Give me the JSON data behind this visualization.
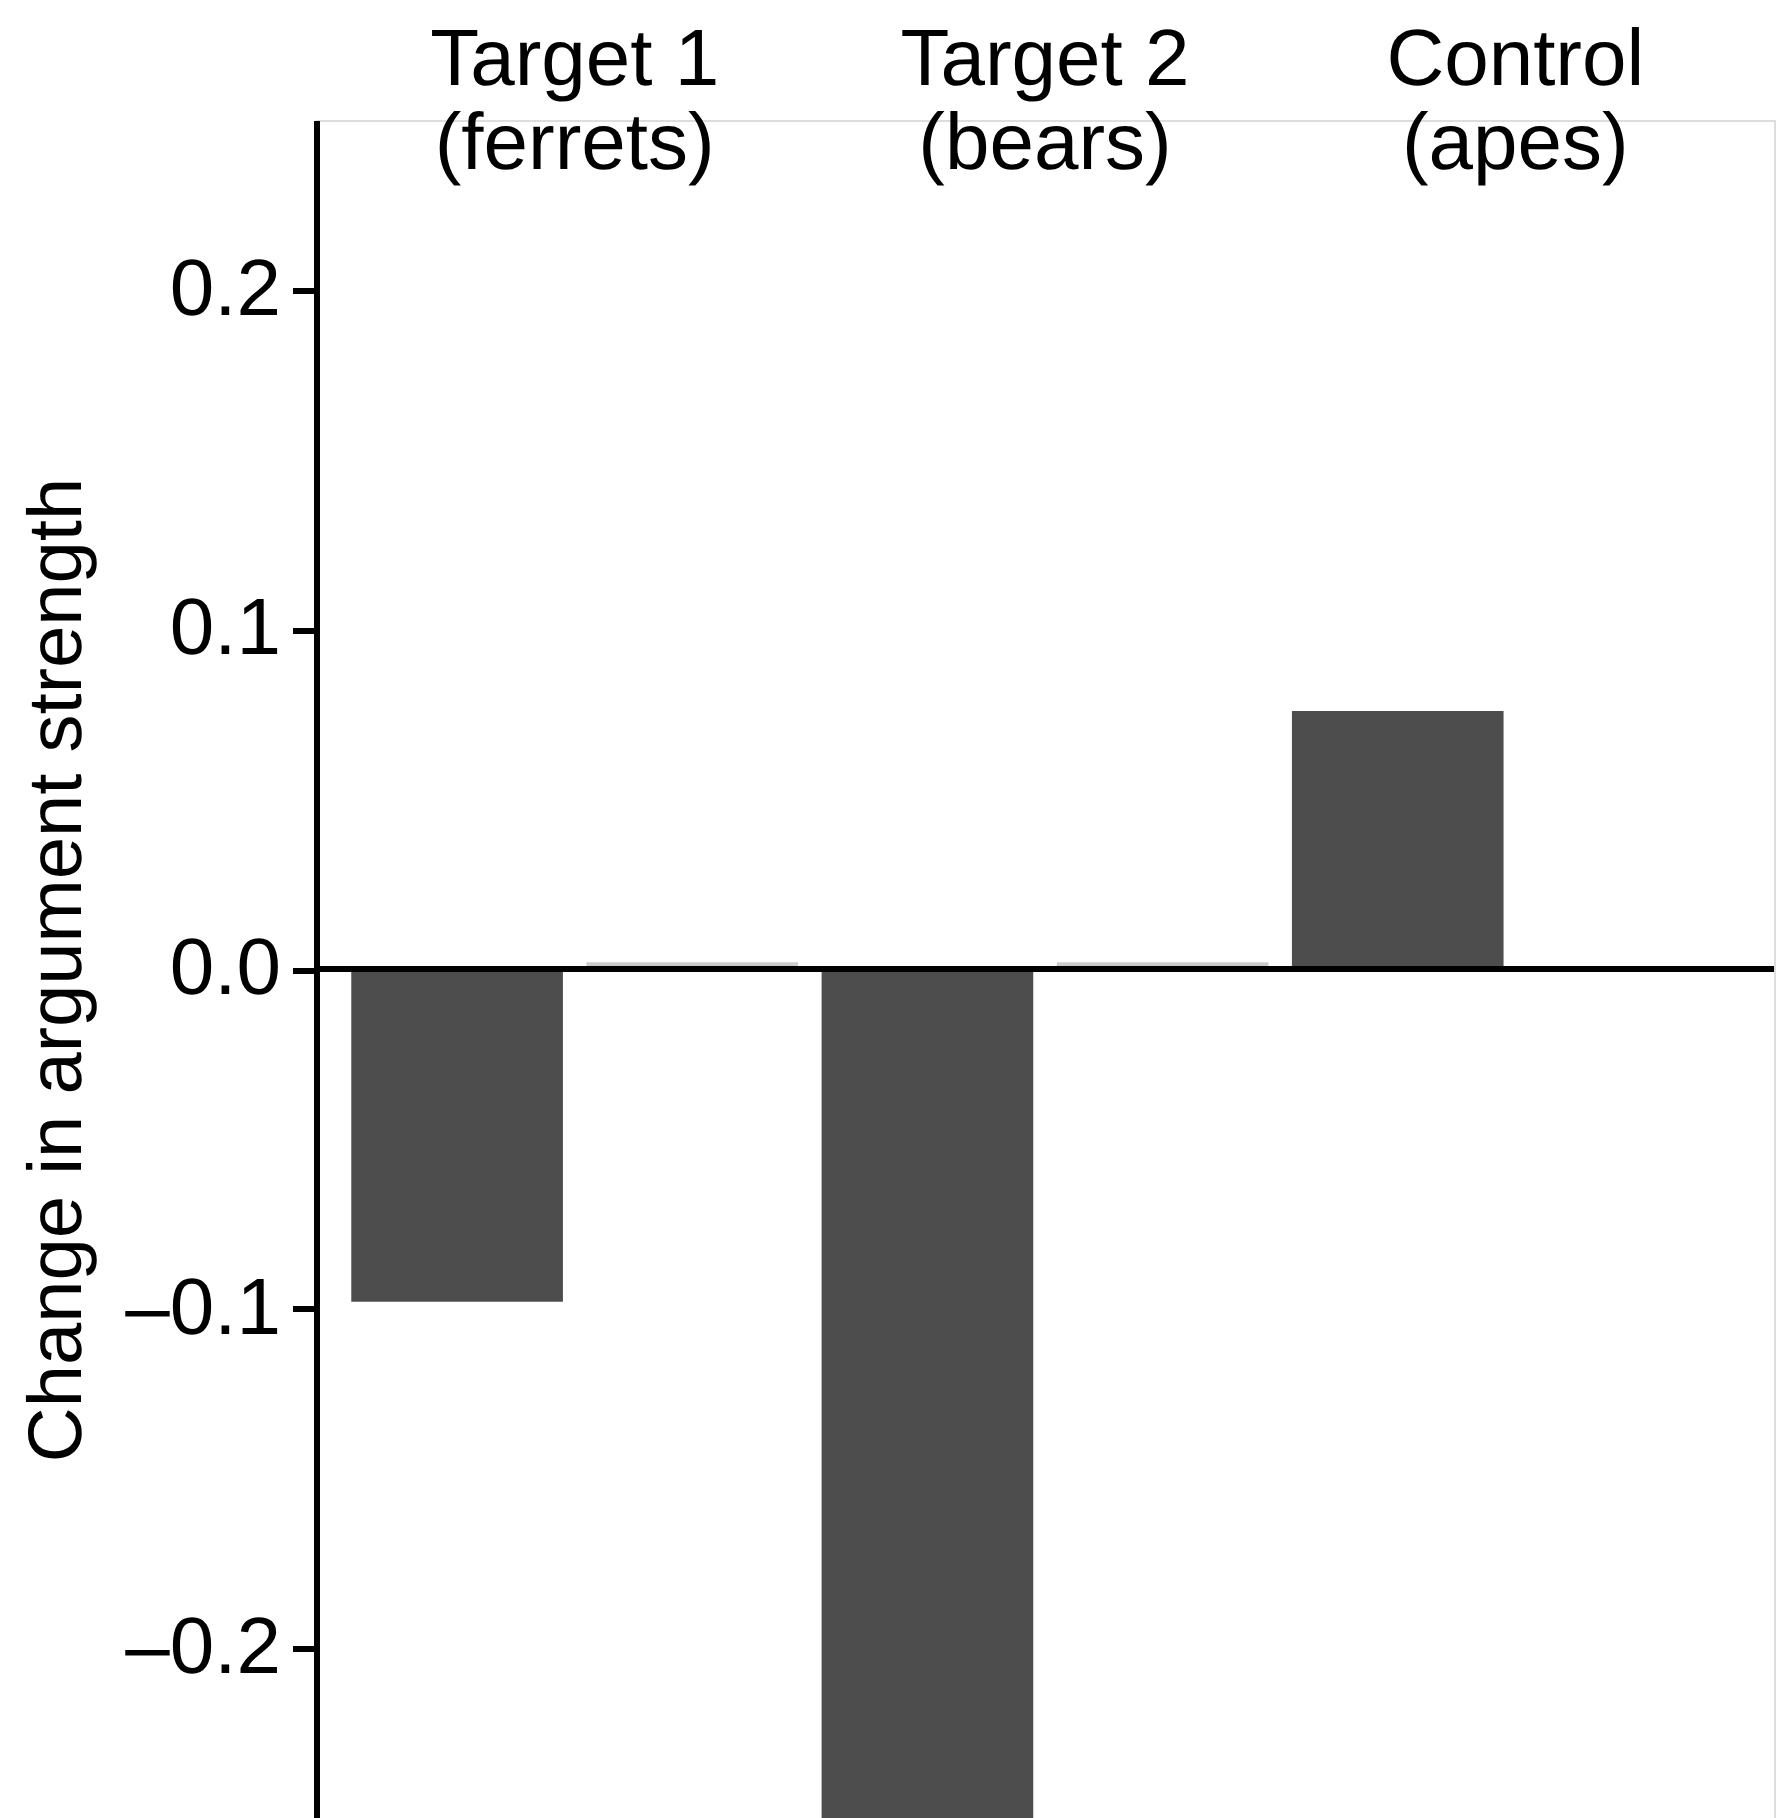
{
  "chart_data": {
    "type": "bar",
    "ylabel": "Change in argument strength",
    "categories": [
      "Target 1\n(ferrets)",
      "Target 2\n(bears)",
      "Control\n(apes)"
    ],
    "series": [
      {
        "color": "#4d4d4d",
        "values": [
          -0.098,
          -0.25,
          0.076
        ]
      },
      {
        "color": "#cccccc",
        "values": [
          0.002,
          0.002,
          null
        ]
      }
    ],
    "ylim": [
      -0.25,
      0.25
    ],
    "yticks": [
      {
        "value": -0.2,
        "label": "–0.2"
      },
      {
        "value": -0.1,
        "label": "–0.1"
      },
      {
        "value": 0,
        "label": "0.0"
      },
      {
        "value": 0.1,
        "label": "0.1"
      },
      {
        "value": 0.2,
        "label": "0.2"
      }
    ],
    "ref_lines": [
      {
        "axis": "y",
        "value": 0,
        "color": "#000000"
      }
    ],
    "grid": false,
    "legend": false
  }
}
